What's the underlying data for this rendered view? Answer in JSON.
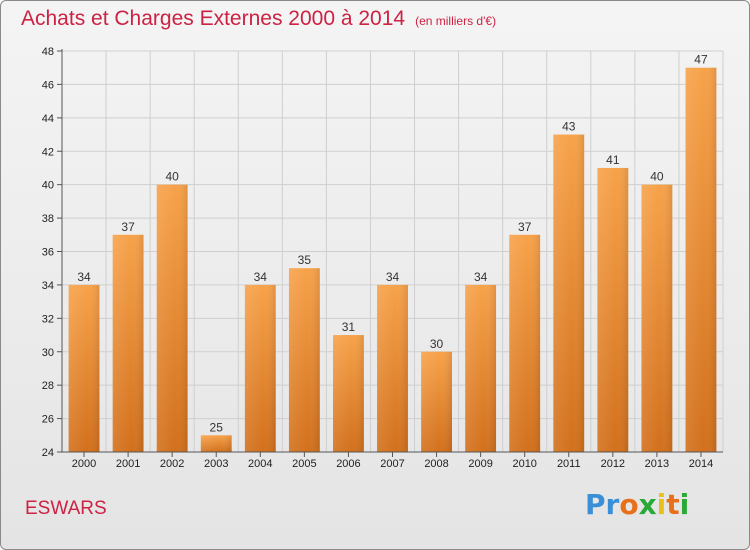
{
  "title": "Achats et Charges Externes 2000 à 2014",
  "subtitle": "(en milliers d'€)",
  "footer": {
    "location": "ESWARS",
    "logo": "Proxiti"
  },
  "colors": {
    "bar_light": "#f7a24a",
    "bar_dark": "#d2701c",
    "title": "#cc2244",
    "grid": "#cfcfcf"
  },
  "chart_data": {
    "type": "bar",
    "title": "Achats et Charges Externes 2000 à 2014",
    "subtitle": "(en milliers d'€)",
    "categories": [
      "2000",
      "2001",
      "2002",
      "2003",
      "2004",
      "2005",
      "2006",
      "2007",
      "2008",
      "2009",
      "2010",
      "2011",
      "2012",
      "2013",
      "2014"
    ],
    "values": [
      34,
      37,
      40,
      25,
      34,
      35,
      31,
      34,
      30,
      34,
      37,
      43,
      41,
      40,
      47
    ],
    "ylim": [
      24,
      48
    ],
    "yticks": [
      24,
      26,
      28,
      30,
      32,
      34,
      36,
      38,
      40,
      42,
      44,
      46,
      48
    ],
    "grid": true,
    "xlabel": "",
    "ylabel": ""
  }
}
